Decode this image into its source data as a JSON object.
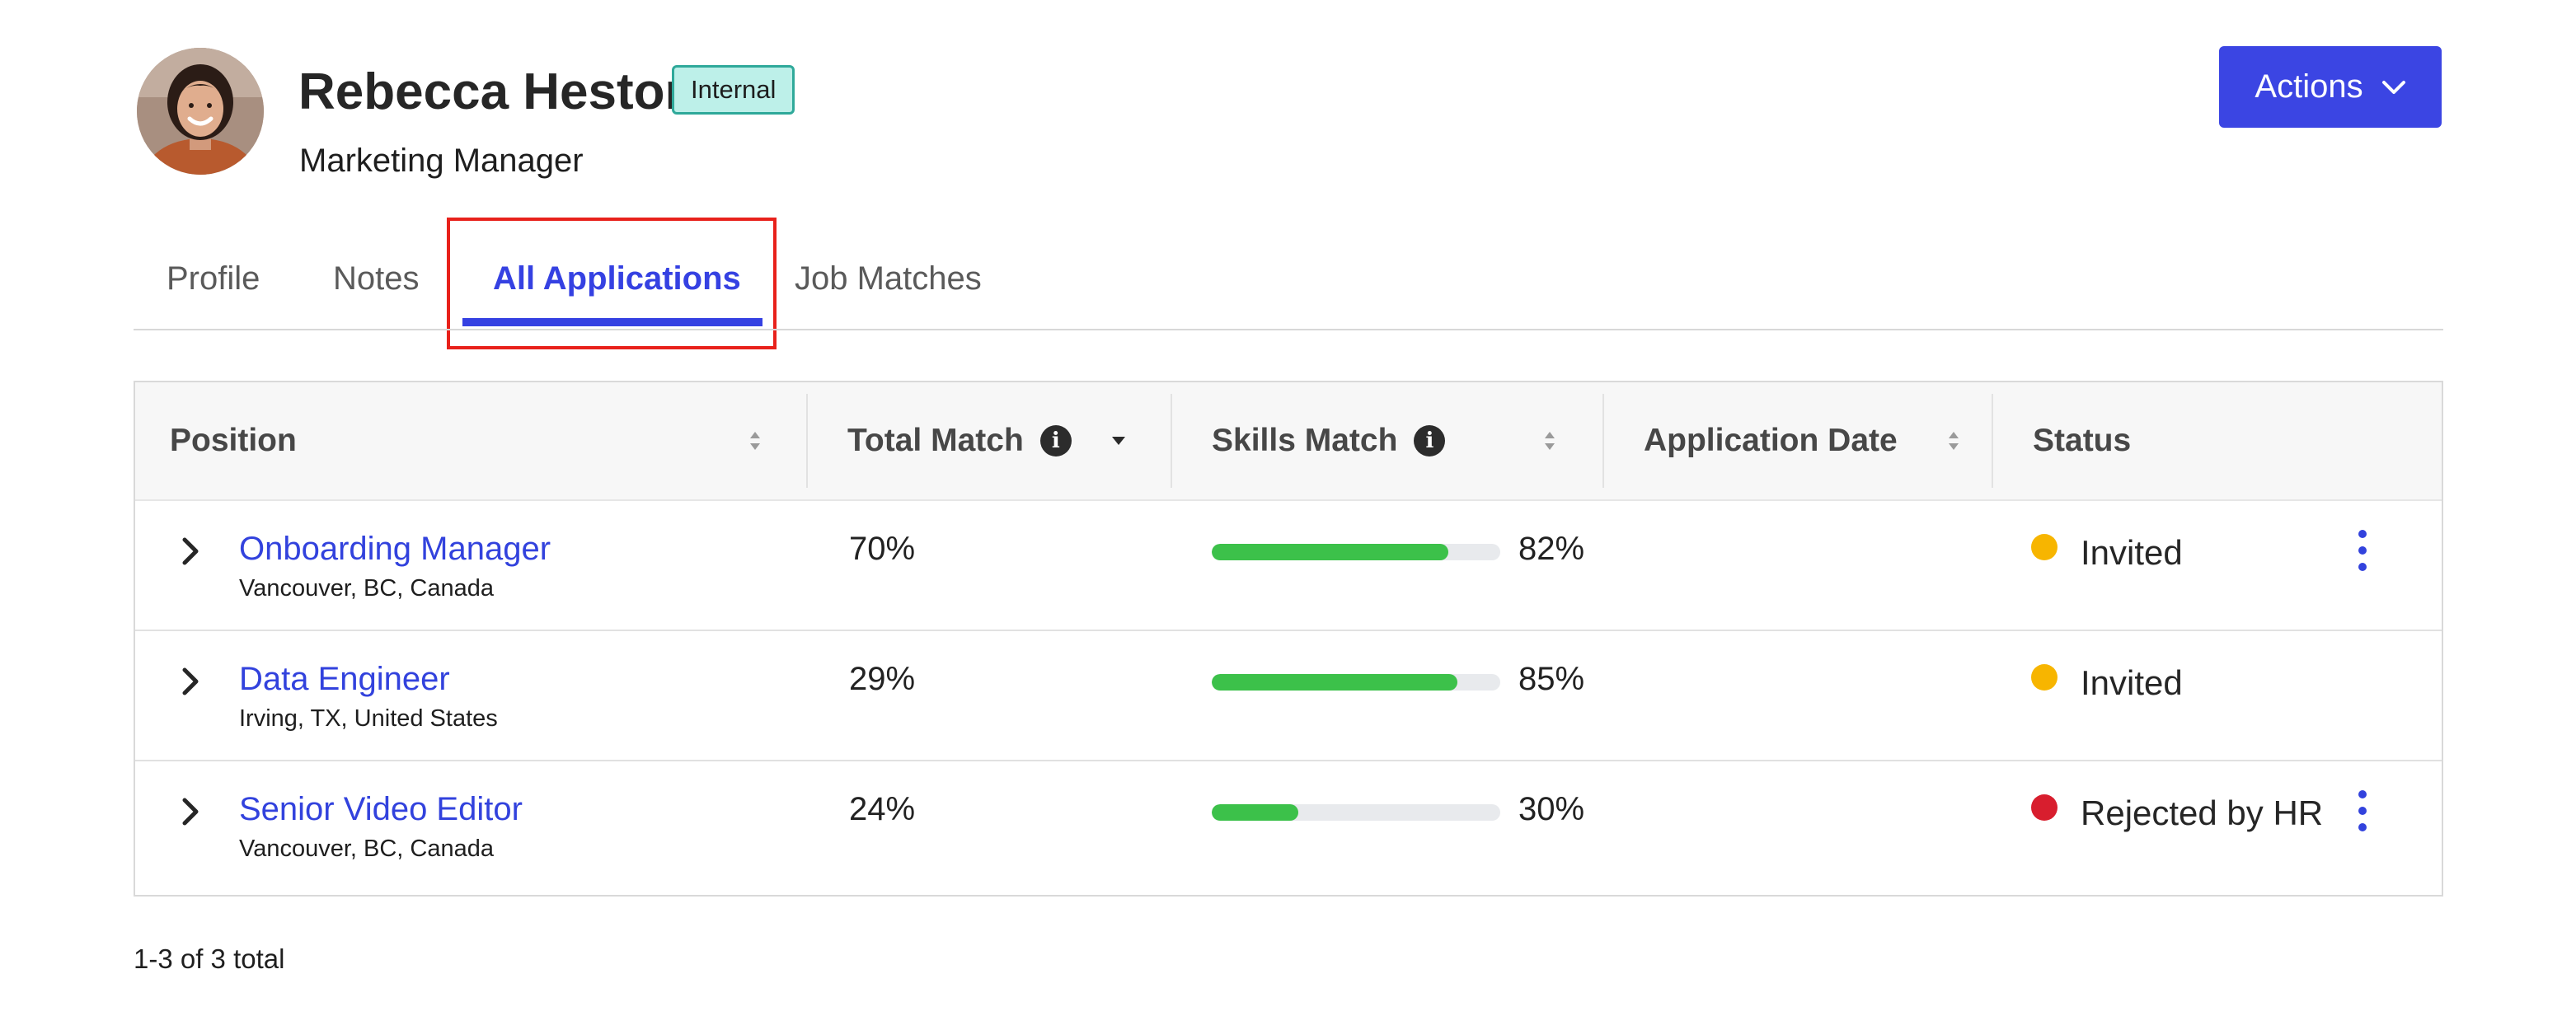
{
  "candidate": {
    "name": "Rebecca Heston",
    "badge": "Internal",
    "job_title": "Marketing Manager"
  },
  "actions": {
    "label": "Actions"
  },
  "tabs": [
    {
      "label": "Profile",
      "active": false
    },
    {
      "label": "Notes",
      "active": false
    },
    {
      "label": "All Applications",
      "active": true
    },
    {
      "label": "Job Matches",
      "active": false
    }
  ],
  "table": {
    "headers": {
      "position": "Position",
      "total_match": "Total Match",
      "skills_match": "Skills Match",
      "application_date": "Application Date",
      "status": "Status"
    },
    "rows": [
      {
        "title": "Onboarding Manager",
        "location": "Vancouver, BC, Canada",
        "total_match": "70%",
        "skills_match": "82%",
        "skills_fraction": 0.82,
        "application_date": "",
        "status": "Invited",
        "status_color": "#f7b500",
        "has_menu": true
      },
      {
        "title": "Data Engineer",
        "location": "Irving, TX, United States",
        "total_match": "29%",
        "skills_match": "85%",
        "skills_fraction": 0.85,
        "application_date": "",
        "status": "Invited",
        "status_color": "#f7b500",
        "has_menu": false
      },
      {
        "title": "Senior Video Editor",
        "location": "Vancouver, BC, Canada",
        "total_match": "24%",
        "skills_match": "30%",
        "skills_fraction": 0.3,
        "application_date": "",
        "status": "Rejected by HR",
        "status_color": "#d81e2e",
        "has_menu": true
      }
    ]
  },
  "pagination": {
    "summary": "1-3 of 3 total"
  },
  "colors": {
    "accent": "#3541e2",
    "progress_fill": "#3cc14a",
    "badge_bg": "#bdf0e9",
    "highlight": "#e8211b"
  }
}
